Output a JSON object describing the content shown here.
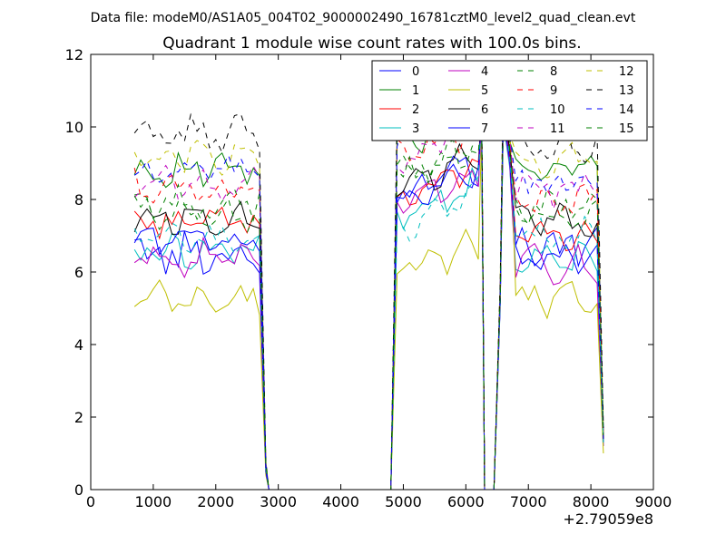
{
  "figure": {
    "suptitle": "Data file: modeM0/AS1A05_004T02_9000002490_16781cztM0_level2_quad_clean.evt",
    "title": "Quadrant 1 module wise count rates with 100.0s bins.",
    "x_offset_label": "+2.79059e8"
  },
  "chart_data": {
    "type": "line",
    "title": "Quadrant 1 module wise count rates with 100.0s bins.",
    "xlabel": "",
    "ylabel": "",
    "xlim": [
      0,
      9000
    ],
    "ylim": [
      0,
      12
    ],
    "x_offset": 279059000,
    "x_ticks": [
      0,
      1000,
      2000,
      3000,
      4000,
      5000,
      6000,
      7000,
      8000,
      9000
    ],
    "y_ticks": [
      0,
      2,
      4,
      6,
      8,
      10,
      12
    ],
    "x_tick_labels": [
      "0",
      "1000",
      "2000",
      "3000",
      "4000",
      "5000",
      "6000",
      "7000",
      "8000",
      "9000"
    ],
    "y_tick_labels": [
      "0",
      "2",
      "4",
      "6",
      "8",
      "10",
      "12"
    ],
    "grid": false,
    "legend_position": "top-right",
    "legend_columns": 4,
    "segments": [
      {
        "name": "first",
        "start": 700,
        "end": 2700,
        "step": 100
      },
      {
        "name": "second",
        "start": 4900,
        "end": 6200,
        "step": 100
      },
      {
        "name": "third",
        "start": 6600,
        "end": 8100,
        "step": 100
      }
    ],
    "series": [
      {
        "name": "0",
        "color": "#0000ff",
        "dash": "solid",
        "levels": [
          6.5,
          8.1,
          6.7
        ],
        "amp": 0.45,
        "edge": [
          0.6,
          10.2,
          10.3,
          1.5
        ]
      },
      {
        "name": "1",
        "color": "#008000",
        "dash": "solid",
        "levels": [
          8.8,
          9.6,
          8.8
        ],
        "amp": 0.35,
        "edge": [
          0.7,
          10.6,
          10.8,
          1.4
        ]
      },
      {
        "name": "2",
        "color": "#ff0000",
        "dash": "solid",
        "levels": [
          7.4,
          8.0,
          7.0
        ],
        "amp": 0.3,
        "edge": [
          0.6,
          10.4,
          10.5,
          1.3
        ]
      },
      {
        "name": "3",
        "color": "#00bfbf",
        "dash": "solid",
        "levels": [
          6.6,
          7.5,
          6.3
        ],
        "amp": 0.35,
        "edge": [
          0.5,
          10.0,
          10.1,
          1.2
        ]
      },
      {
        "name": "4",
        "color": "#bf00bf",
        "dash": "solid",
        "levels": [
          6.4,
          7.7,
          6.2
        ],
        "amp": 0.35,
        "edge": [
          0.5,
          10.1,
          10.2,
          1.2
        ]
      },
      {
        "name": "5",
        "color": "#bfbf00",
        "dash": "solid",
        "levels": [
          5.2,
          5.9,
          5.2
        ],
        "amp": 0.35,
        "edge": [
          0.4,
          9.8,
          11.4,
          1.0
        ]
      },
      {
        "name": "6",
        "color": "#000000",
        "dash": "solid",
        "levels": [
          7.5,
          8.3,
          7.4
        ],
        "amp": 0.3,
        "edge": [
          0.6,
          10.5,
          10.6,
          1.4
        ]
      },
      {
        "name": "7",
        "color": "#0000ff",
        "dash": "solid",
        "levels": [
          6.9,
          7.9,
          6.4
        ],
        "amp": 0.3,
        "edge": [
          0.5,
          10.2,
          10.3,
          1.3
        ]
      },
      {
        "name": "8",
        "color": "#008000",
        "dash": "dashed",
        "levels": [
          7.9,
          8.7,
          7.8
        ],
        "amp": 0.35,
        "edge": [
          0.7,
          10.6,
          10.7,
          1.5
        ]
      },
      {
        "name": "9",
        "color": "#ff0000",
        "dash": "dashed",
        "levels": [
          8.3,
          9.1,
          8.0
        ],
        "amp": 0.35,
        "edge": [
          0.7,
          10.7,
          10.8,
          1.5
        ]
      },
      {
        "name": "10",
        "color": "#00bfbf",
        "dash": "dashed",
        "levels": [
          6.9,
          7.2,
          7.0
        ],
        "amp": 0.3,
        "edge": [
          0.6,
          10.3,
          10.4,
          1.3
        ]
      },
      {
        "name": "11",
        "color": "#bf00bf",
        "dash": "dashed",
        "levels": [
          8.4,
          9.2,
          8.3
        ],
        "amp": 0.35,
        "edge": [
          0.7,
          10.8,
          10.9,
          1.5
        ]
      },
      {
        "name": "12",
        "color": "#bfbf00",
        "dash": "dashed",
        "levels": [
          9.2,
          10.0,
          9.0
        ],
        "amp": 0.35,
        "edge": [
          0.8,
          11.2,
          11.0,
          1.6
        ]
      },
      {
        "name": "13",
        "color": "#000000",
        "dash": "dashed",
        "levels": [
          9.8,
          10.4,
          9.5
        ],
        "amp": 0.35,
        "edge": [
          0.8,
          11.6,
          11.5,
          1.7
        ]
      },
      {
        "name": "14",
        "color": "#0000ff",
        "dash": "dashed",
        "levels": [
          8.7,
          9.6,
          8.5
        ],
        "amp": 0.35,
        "edge": [
          0.7,
          11.0,
          11.0,
          1.6
        ]
      },
      {
        "name": "15",
        "color": "#008000",
        "dash": "dashed",
        "levels": [
          7.6,
          8.6,
          7.6
        ],
        "amp": 0.35,
        "edge": [
          0.7,
          10.5,
          10.6,
          1.5
        ]
      }
    ]
  }
}
